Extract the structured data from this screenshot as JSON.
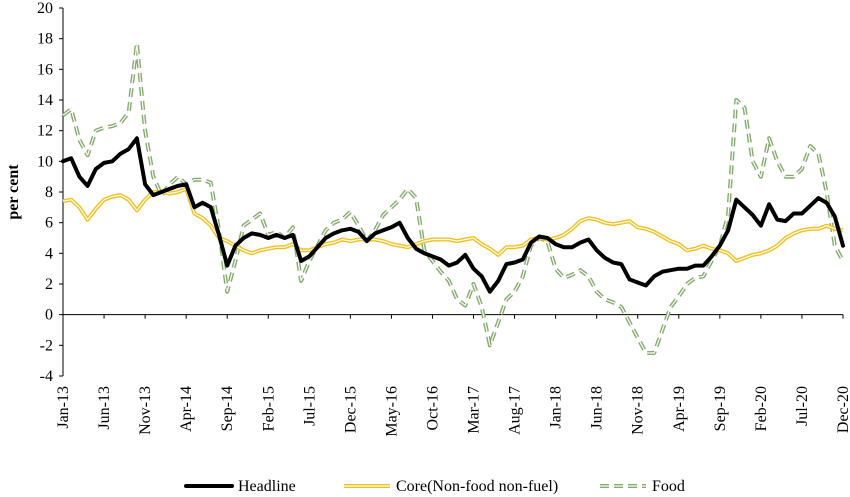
{
  "chart_data": {
    "type": "line",
    "title": "",
    "xlabel": "",
    "ylabel": "per cent",
    "ylim": [
      -4,
      20
    ],
    "yticks": [
      -4,
      -2,
      0,
      2,
      4,
      6,
      8,
      10,
      12,
      14,
      16,
      18,
      20
    ],
    "grid": false,
    "legend_position": "bottom",
    "x": [
      "Jan-13",
      "Feb-13",
      "Mar-13",
      "Apr-13",
      "May-13",
      "Jun-13",
      "Jul-13",
      "Aug-13",
      "Sep-13",
      "Oct-13",
      "Nov-13",
      "Dec-13",
      "Jan-14",
      "Feb-14",
      "Mar-14",
      "Apr-14",
      "May-14",
      "Jun-14",
      "Jul-14",
      "Aug-14",
      "Sep-14",
      "Oct-14",
      "Nov-14",
      "Dec-14",
      "Jan-15",
      "Feb-15",
      "Mar-15",
      "Apr-15",
      "May-15",
      "Jun-15",
      "Jul-15",
      "Aug-15",
      "Sep-15",
      "Oct-15",
      "Nov-15",
      "Dec-15",
      "Jan-16",
      "Feb-16",
      "Mar-16",
      "Apr-16",
      "May-16",
      "Jun-16",
      "Jul-16",
      "Aug-16",
      "Sep-16",
      "Oct-16",
      "Nov-16",
      "Dec-16",
      "Jan-17",
      "Feb-17",
      "Mar-17",
      "Apr-17",
      "May-17",
      "Jun-17",
      "Jul-17",
      "Aug-17",
      "Sep-17",
      "Oct-17",
      "Nov-17",
      "Dec-17",
      "Jan-18",
      "Feb-18",
      "Mar-18",
      "Apr-18",
      "May-18",
      "Jun-18",
      "Jul-18",
      "Aug-18",
      "Sep-18",
      "Oct-18",
      "Nov-18",
      "Dec-18",
      "Jan-19",
      "Feb-19",
      "Mar-19",
      "Apr-19",
      "May-19",
      "Jun-19",
      "Jul-19",
      "Aug-19",
      "Sep-19",
      "Oct-19",
      "Nov-19",
      "Dec-19",
      "Jan-20",
      "Feb-20",
      "Mar-20",
      "Apr-20",
      "May-20",
      "Jun-20",
      "Jul-20",
      "Aug-20",
      "Sep-20",
      "Oct-20",
      "Nov-20",
      "Dec-20"
    ],
    "x_tick_labels": [
      "Jan-13",
      "Jun-13",
      "Nov-13",
      "Apr-14",
      "Sep-14",
      "Feb-15",
      "Jul-15",
      "Dec-15",
      "May-16",
      "Oct-16",
      "Mar-17",
      "Aug-17",
      "Jan-18",
      "Jun-18",
      "Nov-18",
      "Apr-19",
      "Sep-19",
      "Feb-20",
      "Jul-20",
      "Dec-20"
    ],
    "series": [
      {
        "name": "Headline",
        "color": "#000000",
        "style": "solid-thick",
        "values": [
          10.0,
          10.2,
          9.0,
          8.4,
          9.5,
          9.9,
          10.0,
          10.5,
          10.8,
          11.5,
          8.5,
          7.8,
          8.0,
          8.2,
          8.4,
          8.5,
          7.0,
          7.3,
          7.0,
          5.2,
          3.2,
          4.5,
          5.0,
          5.3,
          5.2,
          5.0,
          5.2,
          5.0,
          5.2,
          3.5,
          3.8,
          4.4,
          5.0,
          5.3,
          5.5,
          5.6,
          5.4,
          4.8,
          5.3,
          5.5,
          5.7,
          6.0,
          5.0,
          4.3,
          4.0,
          3.8,
          3.6,
          3.2,
          3.4,
          3.9,
          3.0,
          2.5,
          1.5,
          2.2,
          3.3,
          3.4,
          3.6,
          4.7,
          5.1,
          5.0,
          4.6,
          4.4,
          4.4,
          4.7,
          4.9,
          4.2,
          3.7,
          3.4,
          3.3,
          2.3,
          2.1,
          1.9,
          2.5,
          2.8,
          2.9,
          3.0,
          3.0,
          3.2,
          3.2,
          3.8,
          4.5,
          5.5,
          7.5,
          7.0,
          6.5,
          5.8,
          7.2,
          6.2,
          6.1,
          6.6,
          6.6,
          7.1,
          7.6,
          7.3,
          6.4,
          4.5
        ]
      },
      {
        "name": "Core(Non-food non-fuel)",
        "color": "#f0c020",
        "style": "double",
        "values": [
          7.4,
          7.5,
          7.0,
          6.2,
          6.9,
          7.5,
          7.7,
          7.8,
          7.5,
          6.8,
          7.5,
          8.0,
          8.0,
          7.9,
          8.0,
          8.2,
          6.6,
          6.3,
          5.8,
          5.0,
          4.8,
          4.5,
          4.2,
          4.0,
          4.2,
          4.3,
          4.4,
          4.4,
          4.6,
          4.2,
          4.2,
          4.4,
          4.6,
          4.7,
          4.9,
          4.8,
          4.9,
          4.9,
          4.9,
          4.8,
          4.6,
          4.5,
          4.4,
          4.6,
          4.8,
          4.9,
          4.9,
          4.9,
          4.8,
          4.9,
          5.0,
          4.6,
          4.3,
          3.9,
          4.4,
          4.4,
          4.5,
          4.9,
          5.0,
          4.9,
          5.0,
          5.2,
          5.6,
          6.1,
          6.3,
          6.2,
          6.0,
          5.9,
          6.0,
          6.1,
          5.7,
          5.6,
          5.4,
          5.1,
          4.8,
          4.6,
          4.2,
          4.3,
          4.5,
          4.3,
          4.2,
          4.0,
          3.5,
          3.7,
          3.9,
          4.0,
          4.2,
          4.5,
          5.0,
          5.3,
          5.5,
          5.6,
          5.6,
          5.8,
          5.6,
          5.5
        ]
      },
      {
        "name": "Food",
        "color": "#84aa6e",
        "style": "dashed-double",
        "values": [
          13.0,
          13.4,
          11.4,
          10.4,
          12.0,
          12.2,
          12.3,
          12.5,
          13.2,
          17.7,
          12.0,
          9.0,
          7.8,
          8.5,
          9.0,
          8.5,
          8.8,
          8.8,
          8.6,
          5.5,
          1.5,
          3.5,
          5.8,
          6.2,
          6.6,
          5.2,
          5.4,
          5.0,
          5.7,
          2.2,
          3.5,
          4.5,
          5.5,
          6.0,
          6.2,
          6.7,
          5.8,
          4.8,
          5.5,
          6.5,
          7.0,
          7.5,
          8.2,
          7.6,
          4.2,
          3.5,
          2.8,
          2.2,
          1.0,
          0.6,
          2.0,
          0.5,
          -2.0,
          -0.5,
          1.0,
          1.5,
          2.5,
          4.5,
          5.0,
          4.8,
          3.0,
          2.4,
          2.6,
          2.9,
          2.5,
          1.5,
          1.0,
          0.8,
          0.5,
          -0.5,
          -1.5,
          -2.5,
          -2.5,
          -1.0,
          0.5,
          1.2,
          2.0,
          2.4,
          2.5,
          3.5,
          4.5,
          6.5,
          14.0,
          13.5,
          10.0,
          9.0,
          11.5,
          10.0,
          9.0,
          9.0,
          9.5,
          11.0,
          10.5,
          8.0,
          4.5,
          3.5
        ]
      }
    ]
  }
}
